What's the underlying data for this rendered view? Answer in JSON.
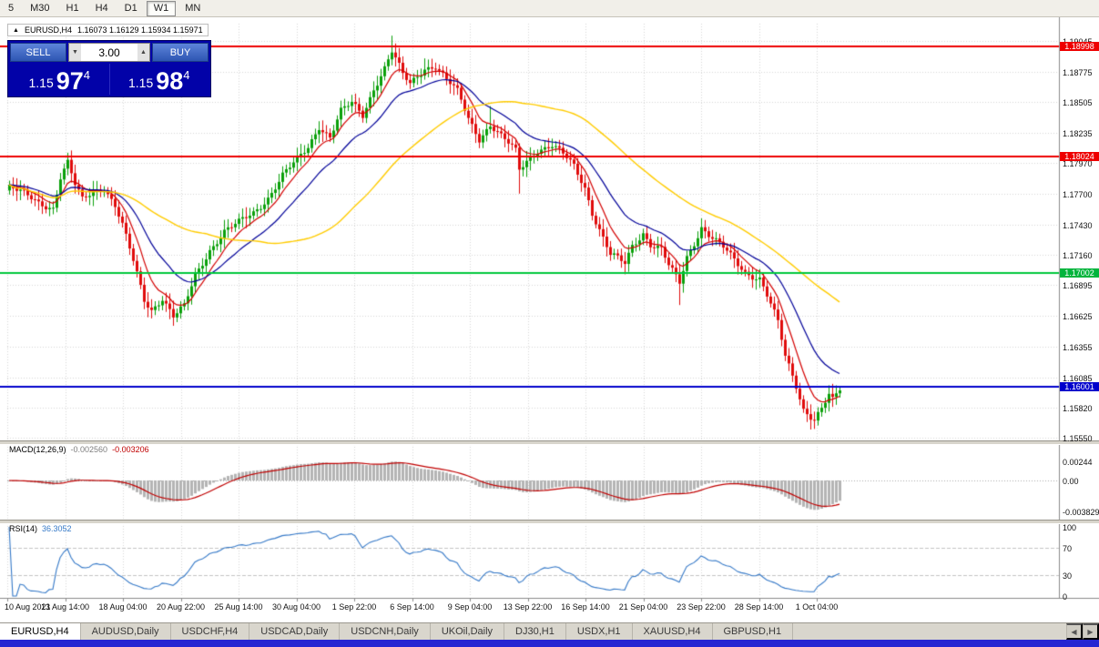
{
  "toolbar": {
    "timeframes": [
      {
        "label": "5"
      },
      {
        "label": "M30"
      },
      {
        "label": "H1"
      },
      {
        "label": "H4"
      },
      {
        "label": "D1"
      },
      {
        "label": "W1"
      },
      {
        "label": "MN"
      }
    ]
  },
  "chart_header": {
    "collapse_icon": "▲",
    "symbol": "EURUSD,H4",
    "ohlc": "1.16073 1.16129 1.15934 1.15971"
  },
  "trade_panel": {
    "sell_label": "SELL",
    "buy_label": "BUY",
    "volume": "3.00",
    "volume_down_icon": "▼",
    "volume_up_icon": "▲",
    "sell_price": {
      "prefix": "1.15",
      "big": "97",
      "sup": "4"
    },
    "buy_price": {
      "prefix": "1.15",
      "big": "98",
      "sup": "4"
    }
  },
  "chart_data": {
    "type": "candlestick",
    "title": "EURUSD,H4",
    "ohlc_current": {
      "open": "1.16073",
      "high": "1.16129",
      "low": "1.15934",
      "close": "1.15971"
    },
    "price_axis": {
      "labels": [
        "1.19045",
        "1.18775",
        "1.18505",
        "1.18235",
        "1.17970",
        "1.17700",
        "1.17430",
        "1.17160",
        "1.16895",
        "1.16625",
        "1.16355",
        "1.16085",
        "1.15820",
        "1.15550"
      ],
      "badges": [
        {
          "text": "1.18998",
          "color": "#ee0000"
        },
        {
          "text": "1.18024",
          "color": "#ee0000"
        },
        {
          "text": "1.17002",
          "color": "#00b43c"
        },
        {
          "text": "1.16001",
          "color": "#0000cc"
        }
      ]
    },
    "h_lines": [
      {
        "price": 1.18998,
        "color": "#ee0000"
      },
      {
        "price": 1.18024,
        "color": "#ee0000"
      },
      {
        "price": 1.17002,
        "color": "#00c83c"
      },
      {
        "price": 1.16001,
        "color": "#0000cc"
      }
    ],
    "time_axis": {
      "labels": [
        "10 Aug 2021",
        "13 Aug 14:00",
        "18 Aug 04:00",
        "20 Aug 22:00",
        "25 Aug 14:00",
        "30 Aug 04:00",
        "1 Sep 22:00",
        "6 Sep 14:00",
        "9 Sep 04:00",
        "13 Sep 22:00",
        "16 Sep 14:00",
        "21 Sep 04:00",
        "23 Sep 22:00",
        "28 Sep 14:00",
        "1 Oct 04:00"
      ]
    },
    "candles": {
      "count": 229,
      "up_color": "#0aa00a",
      "down_color": "#e00b0b",
      "path": [
        [
          0,
          1.1776
        ],
        [
          4,
          1.1769
        ],
        [
          8,
          1.1762
        ],
        [
          12,
          1.1758
        ],
        [
          14,
          1.1785
        ],
        [
          16,
          1.1797
        ],
        [
          18,
          1.1777
        ],
        [
          20,
          1.1764
        ],
        [
          23,
          1.1772
        ],
        [
          26,
          1.1776
        ],
        [
          29,
          1.176
        ],
        [
          31,
          1.1742
        ],
        [
          34,
          1.171
        ],
        [
          37,
          1.1676
        ],
        [
          39,
          1.1668
        ],
        [
          42,
          1.1679
        ],
        [
          45,
          1.1662
        ],
        [
          48,
          1.167
        ],
        [
          51,
          1.1697
        ],
        [
          55,
          1.1721
        ],
        [
          59,
          1.1737
        ],
        [
          63,
          1.1744
        ],
        [
          67,
          1.1753
        ],
        [
          71,
          1.1767
        ],
        [
          75,
          1.1786
        ],
        [
          79,
          1.1799
        ],
        [
          82,
          1.1811
        ],
        [
          85,
          1.183
        ],
        [
          88,
          1.182
        ],
        [
          91,
          1.1842
        ],
        [
          94,
          1.1849
        ],
        [
          97,
          1.1839
        ],
        [
          100,
          1.1863
        ],
        [
          103,
          1.1881
        ],
        [
          105,
          1.1895
        ],
        [
          108,
          1.1874
        ],
        [
          110,
          1.1866
        ],
        [
          114,
          1.1881
        ],
        [
          117,
          1.1883
        ],
        [
          120,
          1.187
        ],
        [
          123,
          1.1859
        ],
        [
          126,
          1.1836
        ],
        [
          129,
          1.1819
        ],
        [
          132,
          1.1831
        ],
        [
          135,
          1.182
        ],
        [
          139,
          1.1807
        ],
        [
          140,
          1.1791
        ],
        [
          142,
          1.1799
        ],
        [
          145,
          1.1809
        ],
        [
          149,
          1.1812
        ],
        [
          152,
          1.1804
        ],
        [
          155,
          1.1794
        ],
        [
          158,
          1.1776
        ],
        [
          160,
          1.1754
        ],
        [
          163,
          1.1731
        ],
        [
          165,
          1.1716
        ],
        [
          169,
          1.1708
        ],
        [
          171,
          1.1724
        ],
        [
          174,
          1.1736
        ],
        [
          176,
          1.1726
        ],
        [
          179,
          1.1721
        ],
        [
          181,
          1.1706
        ],
        [
          184,
          1.1691
        ],
        [
          186,
          1.1714
        ],
        [
          189,
          1.1734
        ],
        [
          190,
          1.1741
        ],
        [
          193,
          1.1731
        ],
        [
          196,
          1.1722
        ],
        [
          199,
          1.1711
        ],
        [
          202,
          1.1701
        ],
        [
          206,
          1.1696
        ],
        [
          208,
          1.1681
        ],
        [
          211,
          1.1656
        ],
        [
          213,
          1.1626
        ],
        [
          216,
          1.1601
        ],
        [
          218,
          1.1581
        ],
        [
          221,
          1.1572
        ],
        [
          223,
          1.1581
        ],
        [
          225,
          1.1592
        ],
        [
          226,
          1.1587
        ],
        [
          228,
          1.1597
        ]
      ],
      "spikes": [
        {
          "i": 16,
          "h": 1.1806
        },
        {
          "i": 45,
          "l": 1.1656
        },
        {
          "i": 105,
          "h": 1.1909
        },
        {
          "i": 114,
          "h": 1.1889
        },
        {
          "i": 132,
          "h": 1.1847
        },
        {
          "i": 140,
          "l": 1.177
        },
        {
          "i": 169,
          "l": 1.1699
        },
        {
          "i": 184,
          "l": 1.1672
        },
        {
          "i": 221,
          "l": 1.1563
        }
      ]
    },
    "moving_averages": [
      {
        "period": 8,
        "type": "ema",
        "color": "#d40000"
      },
      {
        "period": 21,
        "type": "ema",
        "color": "#000099"
      },
      {
        "period": 55,
        "type": "sma",
        "color": "#ffcc00"
      }
    ],
    "macd": {
      "label": "MACD(12,26,9)",
      "value_main": "-0.002560",
      "value_signal": "-0.003206",
      "fast": 12,
      "slow": 26,
      "signal_period": 9,
      "histogram_color": "#b4b4b4",
      "signal_color": "#c00000",
      "axis_labels": [
        {
          "text": "0.00244",
          "value": 0.00244
        },
        {
          "text": "0.00",
          "value": 0
        },
        {
          "text": "-0.003829",
          "value": -0.003829
        }
      ]
    },
    "rsi": {
      "label": "RSI(14)",
      "value": "36.3052",
      "period": 14,
      "color": "#3579c8",
      "levels": [
        70,
        30
      ],
      "axis_labels": [
        {
          "text": "100",
          "value": 100
        },
        {
          "text": "70",
          "value": 70
        },
        {
          "text": "30",
          "value": 30
        },
        {
          "text": "0",
          "value": 0
        }
      ]
    }
  },
  "tabbar": {
    "scroll_left_icon": "◀",
    "scroll_right_icon": "▶",
    "tabs": [
      {
        "label": "EURUSD,H4"
      },
      {
        "label": "AUDUSD,Daily"
      },
      {
        "label": "USDCHF,H4"
      },
      {
        "label": "USDCAD,Daily"
      },
      {
        "label": "USDCNH,Daily"
      },
      {
        "label": "UKOil,Daily"
      },
      {
        "label": "DJ30,H1"
      },
      {
        "label": "USDX,H1"
      },
      {
        "label": "XAUUSD,H4"
      },
      {
        "label": "GBPUSD,H1"
      }
    ]
  }
}
